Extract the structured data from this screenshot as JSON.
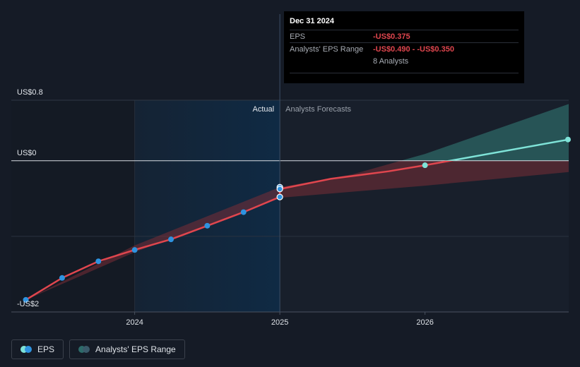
{
  "colors": {
    "background": "#151b26",
    "actual_region": "#0f2a44",
    "eps_line": "#e0464e",
    "eps_marker": "#2e93e0",
    "forecast_positive": "#7fe3d8",
    "range_negative": "#7a2d37",
    "range_positive": "#2d6b6a"
  },
  "tooltip": {
    "date": "Dec 31 2024",
    "eps_label": "EPS",
    "eps_value": "-US$0.375",
    "range_label": "Analysts' EPS Range",
    "range_value": "-US$0.490 - -US$0.350",
    "analysts": "8 Analysts"
  },
  "legend": {
    "eps": {
      "label": "EPS",
      "icon": "eps-legend-icon"
    },
    "range": {
      "label": "Analysts' EPS Range",
      "icon": "range-legend-icon"
    }
  },
  "chart_data": {
    "type": "line",
    "y_tick_labels": {
      "top": "US$0.8",
      "zero": "US$0",
      "bottom": "-US$2"
    },
    "x_tick_labels": [
      "2024",
      "2025",
      "2026"
    ],
    "regions": {
      "actual": "Actual",
      "forecast": "Analysts Forecasts"
    },
    "ylim": [
      -2.0,
      0.8
    ],
    "xlim": [
      2023.15,
      2026.99
    ],
    "grid": true,
    "series": [
      {
        "name": "EPS",
        "points": [
          {
            "x": 2023.25,
            "y": -1.84
          },
          {
            "x": 2023.5,
            "y": -1.55
          },
          {
            "x": 2023.75,
            "y": -1.33
          },
          {
            "x": 2024.0,
            "y": -1.18
          },
          {
            "x": 2024.25,
            "y": -1.04
          },
          {
            "x": 2024.5,
            "y": -0.86
          },
          {
            "x": 2024.75,
            "y": -0.68
          },
          {
            "x": 2025.0,
            "y": -0.48
          },
          {
            "x": 2025.0,
            "y": -0.35
          },
          {
            "x": 2025.0,
            "y": -0.375
          }
        ]
      },
      {
        "name": "Analysts Forecasts",
        "points": [
          {
            "x": 2025.0,
            "y": -0.375
          },
          {
            "x": 2025.35,
            "y": -0.24
          },
          {
            "x": 2025.75,
            "y": -0.14
          },
          {
            "x": 2026.0,
            "y": -0.06
          },
          {
            "x": 2026.99,
            "y": 0.28
          }
        ]
      }
    ],
    "analysts_range": {
      "upper": [
        {
          "x": 2023.25,
          "y": -1.84
        },
        {
          "x": 2024.0,
          "y": -1.12
        },
        {
          "x": 2025.0,
          "y": -0.35
        },
        {
          "x": 2025.5,
          "y": -0.18
        },
        {
          "x": 2026.0,
          "y": 0.09
        },
        {
          "x": 2026.99,
          "y": 0.75
        }
      ],
      "lower": [
        {
          "x": 2023.25,
          "y": -1.84
        },
        {
          "x": 2024.0,
          "y": -1.21
        },
        {
          "x": 2025.0,
          "y": -0.49
        },
        {
          "x": 2025.5,
          "y": -0.41
        },
        {
          "x": 2026.0,
          "y": -0.33
        },
        {
          "x": 2026.99,
          "y": -0.15
        }
      ]
    }
  }
}
